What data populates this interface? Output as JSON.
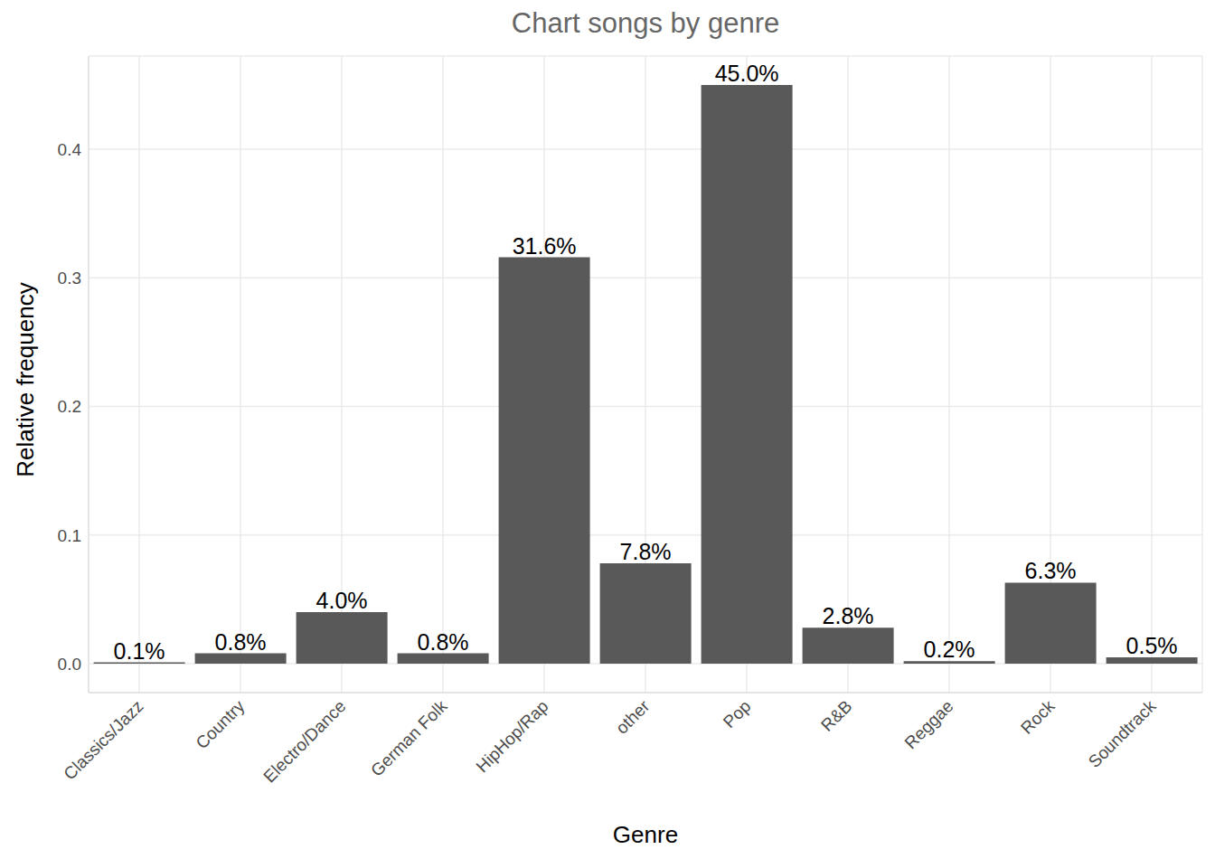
{
  "chart_data": {
    "type": "bar",
    "title": "Chart songs by genre",
    "x_label": "Genre",
    "y_label": "Relative frequency",
    "categories": [
      "Classics/Jazz",
      "Country",
      "Electro/Dance",
      "German Folk",
      "HipHop/Rap",
      "other",
      "Pop",
      "R&B",
      "Reggae",
      "Rock",
      "Soundtrack"
    ],
    "values": [
      0.001,
      0.008,
      0.04,
      0.008,
      0.316,
      0.078,
      0.45,
      0.028,
      0.002,
      0.063,
      0.005
    ],
    "value_labels": [
      "0.1%",
      "0.8%",
      "4.0%",
      "0.8%",
      "31.6%",
      "7.8%",
      "45.0%",
      "2.8%",
      "0.2%",
      "6.3%",
      "0.5%"
    ],
    "color": "#595959",
    "ylim": [
      -0.0225,
      0.4725
    ],
    "yticks": [
      {
        "value": 0,
        "label": "0.0"
      },
      0.1,
      0.2,
      0.3,
      0.4
    ],
    "grid": true,
    "data_labels": true
  }
}
